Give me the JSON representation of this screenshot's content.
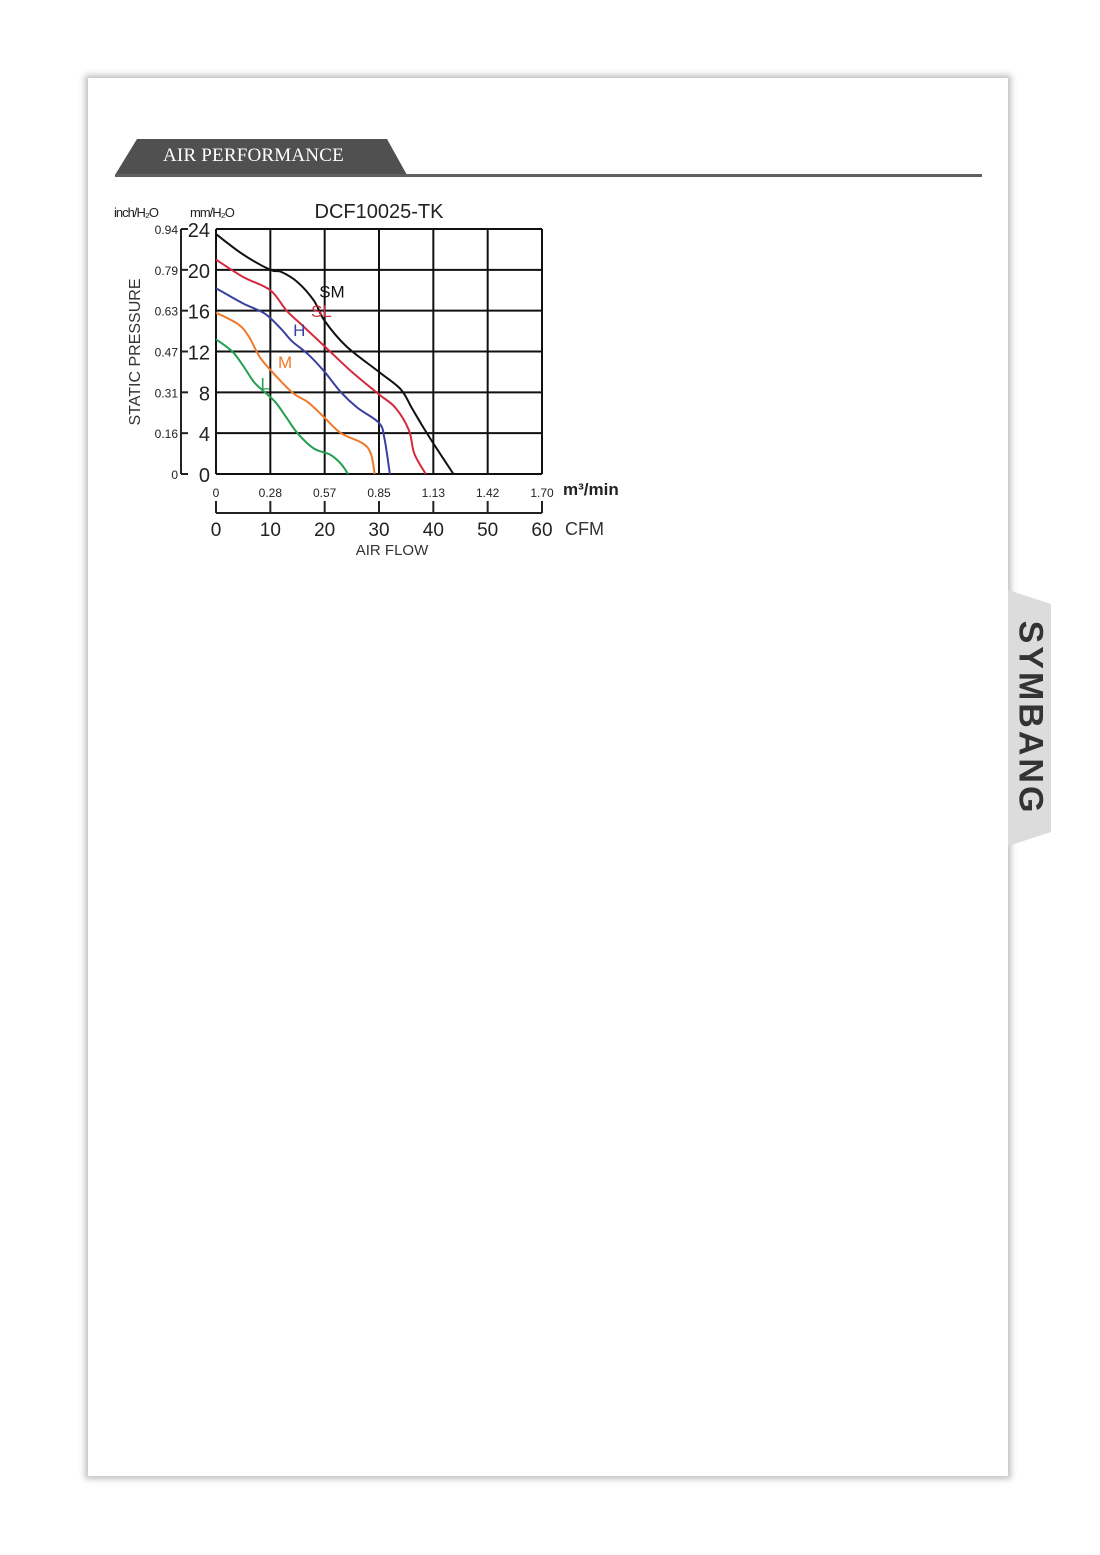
{
  "section_title": "AIR PERFORMANCE",
  "logo_text": "SYMBANG",
  "chart_data": {
    "type": "line",
    "title": "DCF10025-TK",
    "ylabel": "STATIC PRESSURE",
    "xlabel": "AIR FLOW",
    "y_units_left": "inch/H₂O",
    "y_units_right": "mm/H₂O",
    "x_units_top": "m³/min",
    "x_units_bottom": "CFM",
    "xlim": [
      0,
      60
    ],
    "ylim": [
      0,
      24
    ],
    "grid": true,
    "x_ticks_cfm": [
      "0",
      "10",
      "20",
      "30",
      "40",
      "50",
      "60"
    ],
    "x_ticks_m3min": [
      "0",
      "0.28",
      "0.57",
      "0.85",
      "1.13",
      "1.42",
      "1.70"
    ],
    "y_ticks_mm": [
      "0",
      "4",
      "8",
      "12",
      "16",
      "20",
      "24"
    ],
    "y_ticks_inch": [
      "0",
      "0.16",
      "0.31",
      "0.47",
      "0.63",
      "0.79",
      "0.94"
    ],
    "series": [
      {
        "name": "SM",
        "color": "#111111",
        "label_at": [
          19,
          17.3
        ],
        "points": [
          [
            0,
            23.5
          ],
          [
            5,
            21.5
          ],
          [
            10,
            20
          ],
          [
            12,
            19.8
          ],
          [
            15,
            18.8
          ],
          [
            18,
            17
          ],
          [
            20,
            15
          ],
          [
            24,
            12.5
          ],
          [
            30,
            10
          ],
          [
            34,
            8.3
          ],
          [
            36,
            6.5
          ],
          [
            38,
            4.7
          ],
          [
            40,
            3
          ],
          [
            43.7,
            0
          ]
        ]
      },
      {
        "name": "SL",
        "color": "#d42a3c",
        "label_at": [
          17.5,
          15.4
        ],
        "points": [
          [
            0,
            21
          ],
          [
            5,
            19.3
          ],
          [
            10,
            18
          ],
          [
            13,
            16
          ],
          [
            16,
            14.5
          ],
          [
            20,
            12.5
          ],
          [
            25,
            10
          ],
          [
            30,
            7.8
          ],
          [
            33,
            6.5
          ],
          [
            35.5,
            4.3
          ],
          [
            36.5,
            2
          ],
          [
            38.6,
            0
          ]
        ]
      },
      {
        "name": "H",
        "color": "#3a3fa0",
        "label_at": [
          14.2,
          13.5
        ],
        "points": [
          [
            0,
            18.2
          ],
          [
            5,
            16.7
          ],
          [
            9,
            15.7
          ],
          [
            12,
            14.2
          ],
          [
            14,
            13
          ],
          [
            17,
            11.7
          ],
          [
            20,
            10
          ],
          [
            23,
            8
          ],
          [
            26,
            6.5
          ],
          [
            30,
            5
          ],
          [
            31,
            3.5
          ],
          [
            32,
            0
          ]
        ]
      },
      {
        "name": "M",
        "color": "#ee7a2a",
        "label_at": [
          11.4,
          10.4
        ],
        "points": [
          [
            0,
            15.8
          ],
          [
            4,
            14.7
          ],
          [
            6,
            13.5
          ],
          [
            8,
            11.5
          ],
          [
            10,
            10.2
          ],
          [
            14,
            8
          ],
          [
            17,
            7
          ],
          [
            20,
            5.5
          ],
          [
            23,
            4
          ],
          [
            27,
            3
          ],
          [
            28.5,
            2
          ],
          [
            29.2,
            0
          ]
        ]
      },
      {
        "name": "L",
        "color": "#22a050",
        "label_at": [
          8.2,
          8.3
        ],
        "points": [
          [
            0,
            13.2
          ],
          [
            3,
            12
          ],
          [
            5,
            10.6
          ],
          [
            7,
            9
          ],
          [
            9,
            8
          ],
          [
            11,
            7
          ],
          [
            13,
            5.5
          ],
          [
            15,
            4
          ],
          [
            18,
            2.5
          ],
          [
            21,
            1.9
          ],
          [
            23,
            1
          ],
          [
            24.3,
            0
          ]
        ]
      }
    ]
  }
}
